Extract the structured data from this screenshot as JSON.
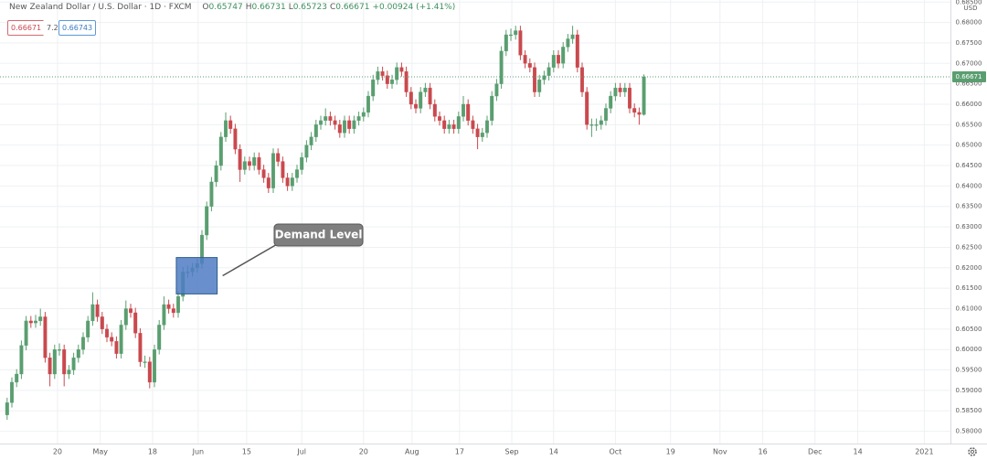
{
  "chart_data": {
    "type": "candlestick",
    "title": "New Zealand Dollar / U.S. Dollar · 1D · FXCM",
    "ohlc_labels": [
      "O",
      "H",
      "L",
      "C"
    ],
    "change": "+0.00924 (+1.41%)",
    "spread": 7.2,
    "buy_price": 0.66743,
    "currency": "USD",
    "annotation": "Demand Level",
    "zone": {
      "from": 35.6,
      "to": 44.2,
      "top": 0.6225,
      "bottom": 0.6136,
      "color": "#4f7cc4"
    },
    "up_color": "#5a9e70",
    "down_color": "#c9494e",
    "grid": true,
    "xlim": [
      -1.5,
      198.5
    ],
    "ylim": [
      0.577,
      0.6855
    ],
    "xticks": [
      {
        "value": 10.6,
        "label": "20"
      },
      {
        "value": 19.6,
        "label": "May"
      },
      {
        "value": 30.6,
        "label": "18"
      },
      {
        "value": 40.2,
        "label": "Jun"
      },
      {
        "value": 50.4,
        "label": "15"
      },
      {
        "value": 62,
        "label": "Jul"
      },
      {
        "value": 75,
        "label": "20"
      },
      {
        "value": 85.2,
        "label": "Aug"
      },
      {
        "value": 95.2,
        "label": "17"
      },
      {
        "value": 106.2,
        "label": "Sep"
      },
      {
        "value": 115,
        "label": "14"
      },
      {
        "value": 128,
        "label": "Oct"
      },
      {
        "value": 139.6,
        "label": "19"
      },
      {
        "value": 150,
        "label": "Nov"
      },
      {
        "value": 159,
        "label": "16"
      },
      {
        "value": 170,
        "label": "Dec"
      },
      {
        "value": 179,
        "label": "14"
      },
      {
        "value": 193,
        "label": "2021"
      }
    ],
    "yticks": [
      {
        "value": 0.58,
        "label": "0.58000"
      },
      {
        "value": 0.585,
        "label": "0.58500"
      },
      {
        "value": 0.59,
        "label": "0.59000"
      },
      {
        "value": 0.595,
        "label": "0.59500"
      },
      {
        "value": 0.6,
        "label": "0.60000"
      },
      {
        "value": 0.605,
        "label": "0.60500"
      },
      {
        "value": 0.61,
        "label": "0.61000"
      },
      {
        "value": 0.615,
        "label": "0.61500"
      },
      {
        "value": 0.62,
        "label": "0.62000"
      },
      {
        "value": 0.625,
        "label": "0.62500"
      },
      {
        "value": 0.63,
        "label": "0.63000"
      },
      {
        "value": 0.635,
        "label": "0.63500"
      },
      {
        "value": 0.64,
        "label": "0.64000"
      },
      {
        "value": 0.645,
        "label": "0.64500"
      },
      {
        "value": 0.65,
        "label": "0.65000"
      },
      {
        "value": 0.655,
        "label": "0.65500"
      },
      {
        "value": 0.66,
        "label": "0.66000"
      },
      {
        "value": 0.665,
        "label": "0.66500"
      },
      {
        "value": 0.67,
        "label": "0.67000"
      },
      {
        "value": 0.675,
        "label": "0.67500"
      },
      {
        "value": 0.68,
        "label": "0.68000"
      },
      {
        "value": 0.685,
        "label": "0.68500"
      }
    ],
    "open": [
      0.584,
      0.587,
      0.592,
      0.594,
      0.601,
      0.607,
      0.6065,
      0.607,
      0.608,
      0.598,
      0.594,
      0.6,
      0.6,
      0.594,
      0.595,
      0.598,
      0.6,
      0.603,
      0.607,
      0.611,
      0.608,
      0.605,
      0.603,
      0.602,
      0.599,
      0.606,
      0.61,
      0.609,
      0.604,
      0.597,
      0.597,
      0.592,
      0.6,
      0.606,
      0.611,
      0.61,
      0.609,
      0.613,
      0.619,
      0.619,
      0.62,
      0.621,
      0.628,
      0.635,
      0.641,
      0.645,
      0.652,
      0.656,
      0.654,
      0.649,
      0.644,
      0.646,
      0.645,
      0.647,
      0.644,
      0.642,
      0.6395,
      0.648,
      0.646,
      0.642,
      0.64,
      0.642,
      0.644,
      0.647,
      0.65,
      0.652,
      0.655,
      0.656,
      0.657,
      0.656,
      0.655,
      0.653,
      0.656,
      0.654,
      0.656,
      0.657,
      0.658,
      0.662,
      0.666,
      0.668,
      0.667,
      0.665,
      0.666,
      0.669,
      0.668,
      0.663,
      0.66,
      0.659,
      0.663,
      0.664,
      0.66,
      0.657,
      0.656,
      0.654,
      0.655,
      0.654,
      0.657,
      0.66,
      0.656,
      0.654,
      0.652,
      0.653,
      0.656,
      0.662,
      0.665,
      0.673,
      0.677,
      0.677,
      0.678,
      0.672,
      0.67,
      0.669,
      0.663,
      0.666,
      0.667,
      0.669,
      0.672,
      0.67,
      0.674,
      0.676,
      0.677,
      0.669,
      0.663,
      0.655,
      0.655,
      0.655,
      0.656,
      0.659,
      0.662,
      0.664,
      0.663,
      0.664,
      0.659,
      0.658,
      0.65747
    ],
    "high": [
      0.5882,
      0.5932,
      0.5952,
      0.6022,
      0.6082,
      0.6082,
      0.6085,
      0.61,
      0.6092,
      0.5992,
      0.6012,
      0.6015,
      0.6012,
      0.5962,
      0.5992,
      0.6012,
      0.6042,
      0.6082,
      0.614,
      0.6122,
      0.6092,
      0.6062,
      0.6042,
      0.6032,
      0.6072,
      0.612,
      0.6112,
      0.6102,
      0.6052,
      0.5985,
      0.5982,
      0.6012,
      0.6072,
      0.613,
      0.6122,
      0.6112,
      0.6142,
      0.6202,
      0.6205,
      0.6212,
      0.6222,
      0.6292,
      0.6362,
      0.6422,
      0.6462,
      0.6532,
      0.658,
      0.6572,
      0.6552,
      0.6502,
      0.6472,
      0.6472,
      0.6482,
      0.6482,
      0.6452,
      0.6432,
      0.6492,
      0.6492,
      0.6472,
      0.6432,
      0.6432,
      0.6452,
      0.6482,
      0.6512,
      0.6532,
      0.6562,
      0.6572,
      0.659,
      0.6582,
      0.6572,
      0.6562,
      0.6572,
      0.6572,
      0.6572,
      0.6582,
      0.6592,
      0.6632,
      0.6672,
      0.6692,
      0.6692,
      0.6682,
      0.6672,
      0.6702,
      0.6702,
      0.6692,
      0.6642,
      0.6612,
      0.6642,
      0.6652,
      0.6652,
      0.6612,
      0.6582,
      0.6572,
      0.6562,
      0.6562,
      0.6582,
      0.662,
      0.6612,
      0.6572,
      0.6552,
      0.6542,
      0.6572,
      0.6632,
      0.6662,
      0.6742,
      0.6782,
      0.6785,
      0.6792,
      0.6792,
      0.6732,
      0.6712,
      0.6702,
      0.6672,
      0.6682,
      0.6702,
      0.6732,
      0.6732,
      0.6752,
      0.6772,
      0.6792,
      0.6782,
      0.6702,
      0.6642,
      0.6565,
      0.6565,
      0.6572,
      0.6602,
      0.6632,
      0.6652,
      0.6652,
      0.6652,
      0.6652,
      0.6602,
      0.6592,
      0.66731
    ],
    "low": [
      0.5828,
      0.5858,
      0.5908,
      0.5928,
      0.5998,
      0.6053,
      0.6053,
      0.6058,
      0.5968,
      0.591,
      0.5928,
      0.5985,
      0.591,
      0.5928,
      0.5938,
      0.5968,
      0.5988,
      0.6018,
      0.6058,
      0.6068,
      0.6038,
      0.6018,
      0.6008,
      0.5978,
      0.5978,
      0.6048,
      0.6078,
      0.6028,
      0.5958,
      0.5955,
      0.5905,
      0.5908,
      0.5988,
      0.6048,
      0.6088,
      0.6078,
      0.6078,
      0.6118,
      0.6175,
      0.6178,
      0.6188,
      0.6198,
      0.6268,
      0.6338,
      0.6398,
      0.6438,
      0.6508,
      0.6528,
      0.6478,
      0.641,
      0.6428,
      0.6438,
      0.6438,
      0.6428,
      0.6408,
      0.6383,
      0.6383,
      0.6448,
      0.6408,
      0.6388,
      0.6388,
      0.6408,
      0.6428,
      0.6458,
      0.6488,
      0.6508,
      0.6538,
      0.6548,
      0.6548,
      0.6538,
      0.6518,
      0.6518,
      0.6528,
      0.6528,
      0.6548,
      0.6558,
      0.6568,
      0.6608,
      0.6648,
      0.6658,
      0.6638,
      0.6638,
      0.6648,
      0.6668,
      0.6618,
      0.6588,
      0.6578,
      0.6578,
      0.6618,
      0.6588,
      0.6558,
      0.6548,
      0.6528,
      0.6528,
      0.6528,
      0.6528,
      0.6558,
      0.6548,
      0.6528,
      0.649,
      0.6508,
      0.6518,
      0.6548,
      0.6608,
      0.6638,
      0.6718,
      0.6755,
      0.6758,
      0.6708,
      0.6688,
      0.6678,
      0.6618,
      0.6618,
      0.6648,
      0.6658,
      0.6678,
      0.6688,
      0.6688,
      0.6728,
      0.6748,
      0.6678,
      0.6618,
      0.6538,
      0.652,
      0.6535,
      0.6538,
      0.6548,
      0.6578,
      0.6608,
      0.6618,
      0.6618,
      0.6578,
      0.6568,
      0.655,
      0.65723
    ],
    "close": [
      0.587,
      0.592,
      0.594,
      0.601,
      0.607,
      0.6065,
      0.607,
      0.608,
      0.598,
      0.594,
      0.6,
      0.6,
      0.594,
      0.595,
      0.598,
      0.6,
      0.603,
      0.607,
      0.611,
      0.608,
      0.605,
      0.603,
      0.602,
      0.599,
      0.606,
      0.61,
      0.609,
      0.604,
      0.597,
      0.597,
      0.592,
      0.6,
      0.606,
      0.611,
      0.61,
      0.609,
      0.613,
      0.619,
      0.619,
      0.62,
      0.621,
      0.628,
      0.635,
      0.641,
      0.645,
      0.652,
      0.656,
      0.654,
      0.649,
      0.644,
      0.646,
      0.645,
      0.647,
      0.644,
      0.642,
      0.6395,
      0.648,
      0.646,
      0.642,
      0.64,
      0.642,
      0.644,
      0.647,
      0.65,
      0.652,
      0.655,
      0.656,
      0.657,
      0.656,
      0.655,
      0.653,
      0.656,
      0.654,
      0.656,
      0.657,
      0.658,
      0.662,
      0.666,
      0.668,
      0.667,
      0.665,
      0.666,
      0.669,
      0.668,
      0.663,
      0.66,
      0.659,
      0.663,
      0.664,
      0.66,
      0.657,
      0.656,
      0.654,
      0.655,
      0.654,
      0.657,
      0.66,
      0.656,
      0.654,
      0.652,
      0.653,
      0.656,
      0.662,
      0.665,
      0.673,
      0.677,
      0.677,
      0.678,
      0.672,
      0.67,
      0.669,
      0.663,
      0.666,
      0.667,
      0.669,
      0.672,
      0.67,
      0.674,
      0.676,
      0.677,
      0.669,
      0.663,
      0.655,
      0.655,
      0.655,
      0.656,
      0.659,
      0.662,
      0.664,
      0.663,
      0.664,
      0.659,
      0.658,
      0.6575,
      0.66671
    ]
  }
}
